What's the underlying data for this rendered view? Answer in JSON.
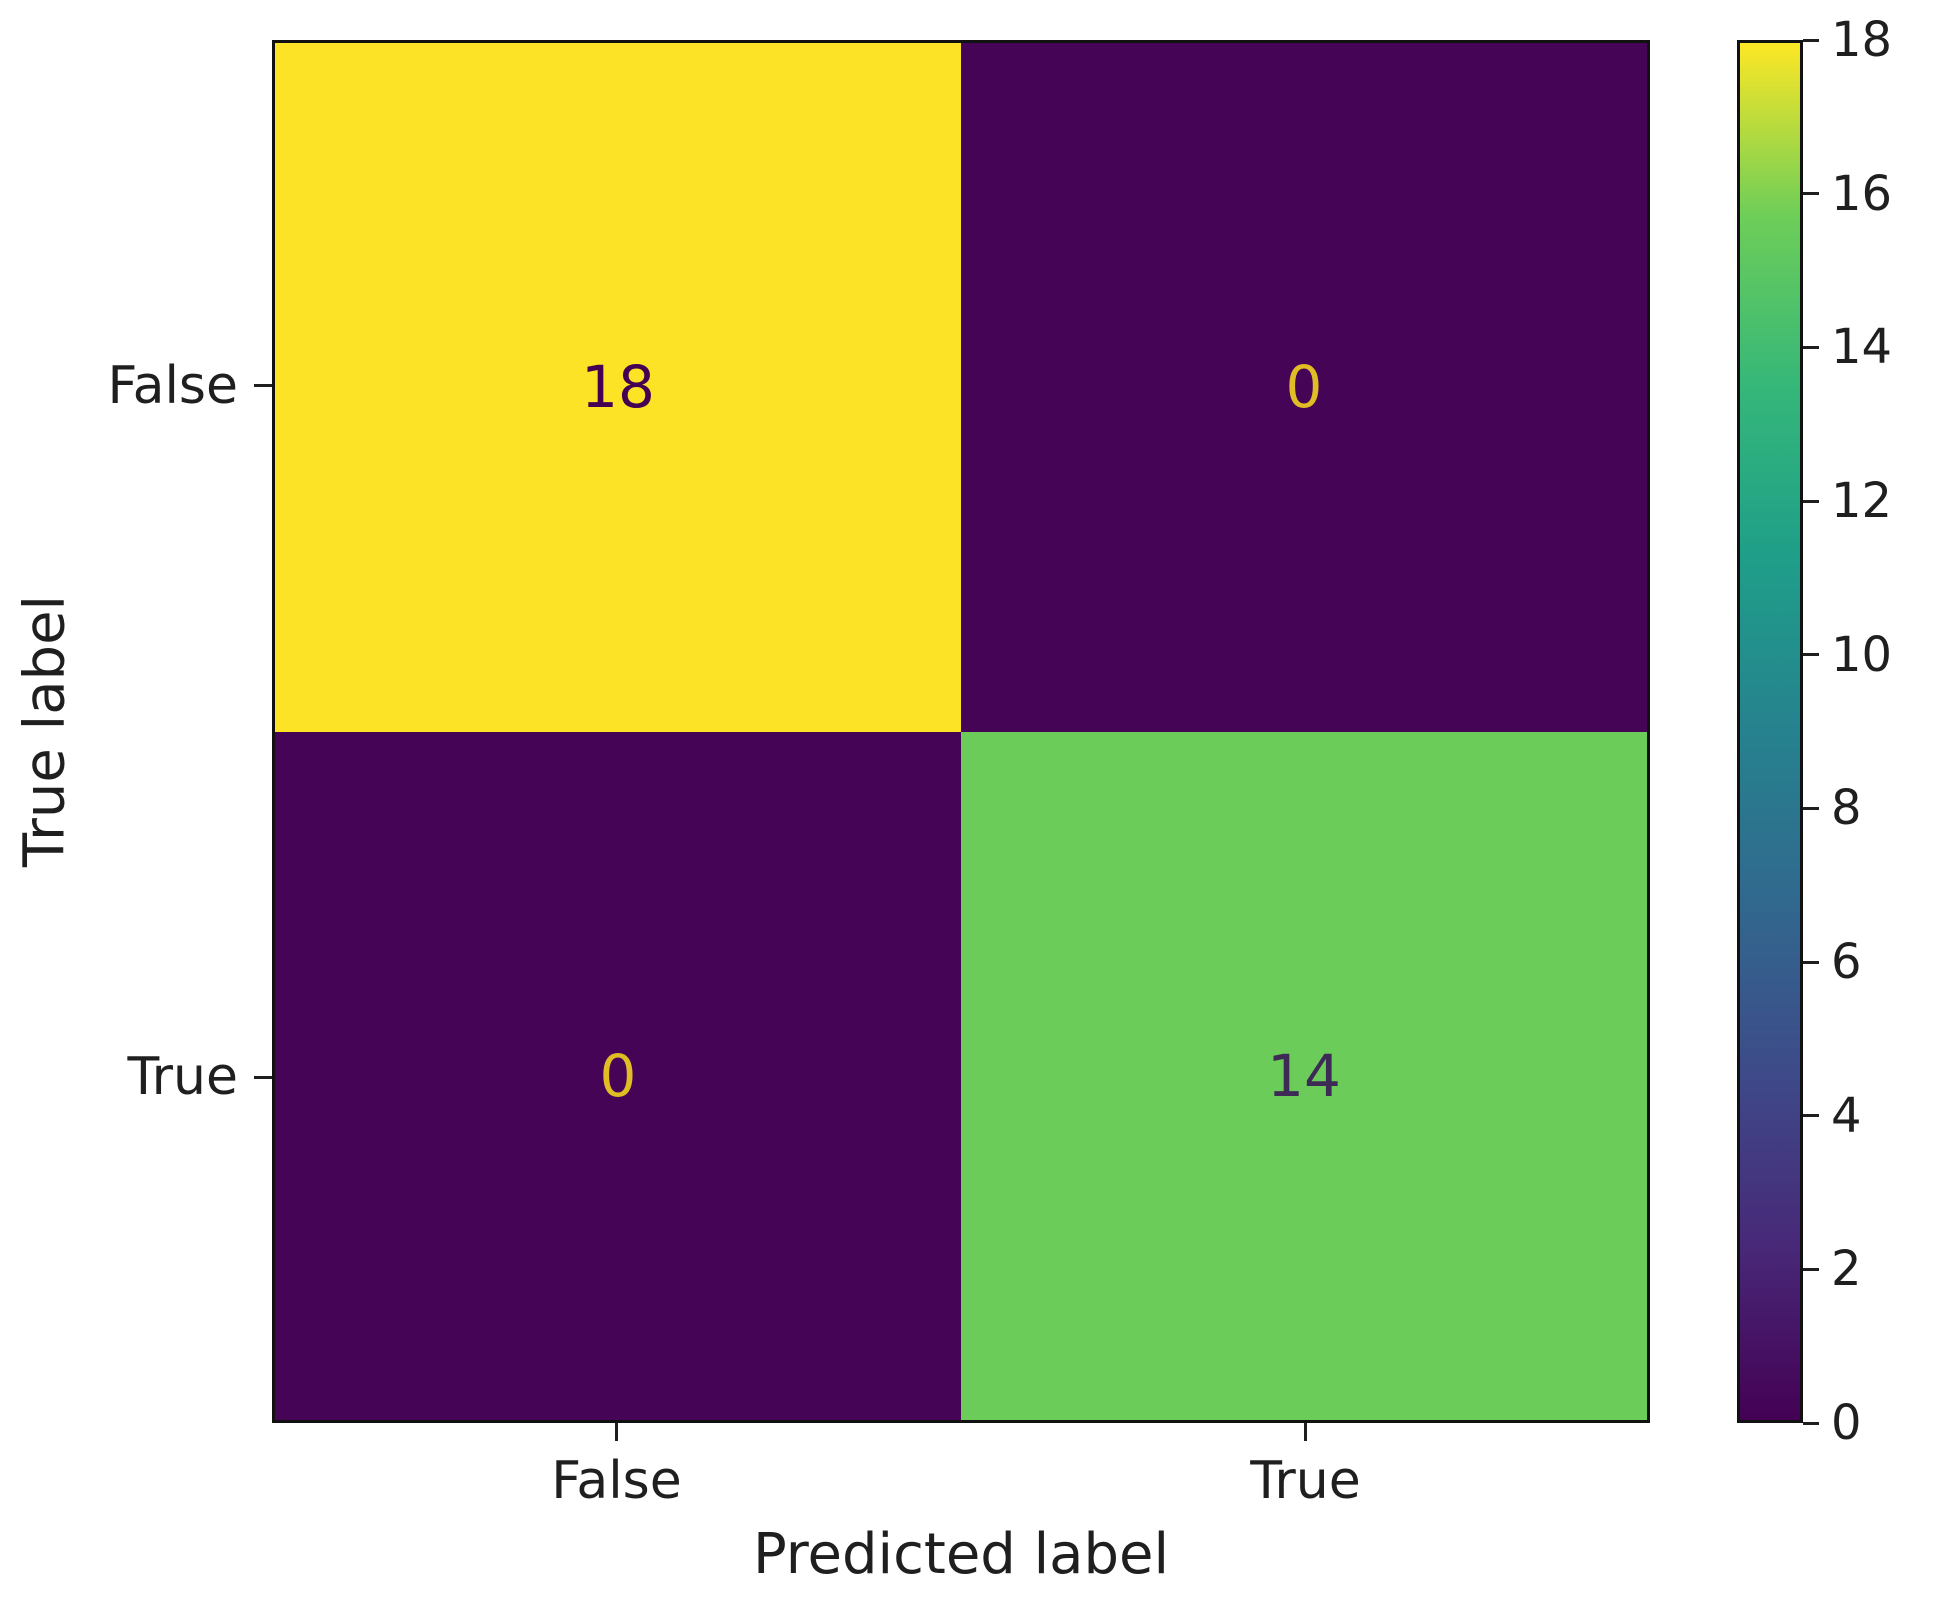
{
  "chart_data": {
    "type": "heatmap",
    "title": "",
    "xlabel": "Predicted label",
    "ylabel": "True label",
    "x_categories": [
      "False",
      "True"
    ],
    "y_categories": [
      "False",
      "True"
    ],
    "matrix": [
      [
        18,
        0
      ],
      [
        0,
        14
      ]
    ],
    "colormap": "viridis",
    "colorbar_range": [
      0,
      18
    ],
    "colorbar_ticks": [
      0,
      2,
      4,
      6,
      8,
      10,
      12,
      14,
      16,
      18
    ],
    "cells": [
      {
        "row_label": "False",
        "col_label": "False",
        "value": 18,
        "bg": "#fce325",
        "fg": "#440154"
      },
      {
        "row_label": "False",
        "col_label": "True",
        "value": 0,
        "bg": "#450456",
        "fg": "#e0bc25"
      },
      {
        "row_label": "True",
        "col_label": "False",
        "value": 0,
        "bg": "#450456",
        "fg": "#e0bc25"
      },
      {
        "row_label": "True",
        "col_label": "True",
        "value": 14,
        "bg": "#6bcc5a",
        "fg": "#3d2b56"
      }
    ],
    "viridis_stops": [
      "#440154",
      "#482878",
      "#3e4a89",
      "#31688e",
      "#26828e",
      "#1f9e89",
      "#35b779",
      "#6ece58",
      "#fde725"
    ],
    "legend_position": "right-colorbar",
    "grid": false
  }
}
